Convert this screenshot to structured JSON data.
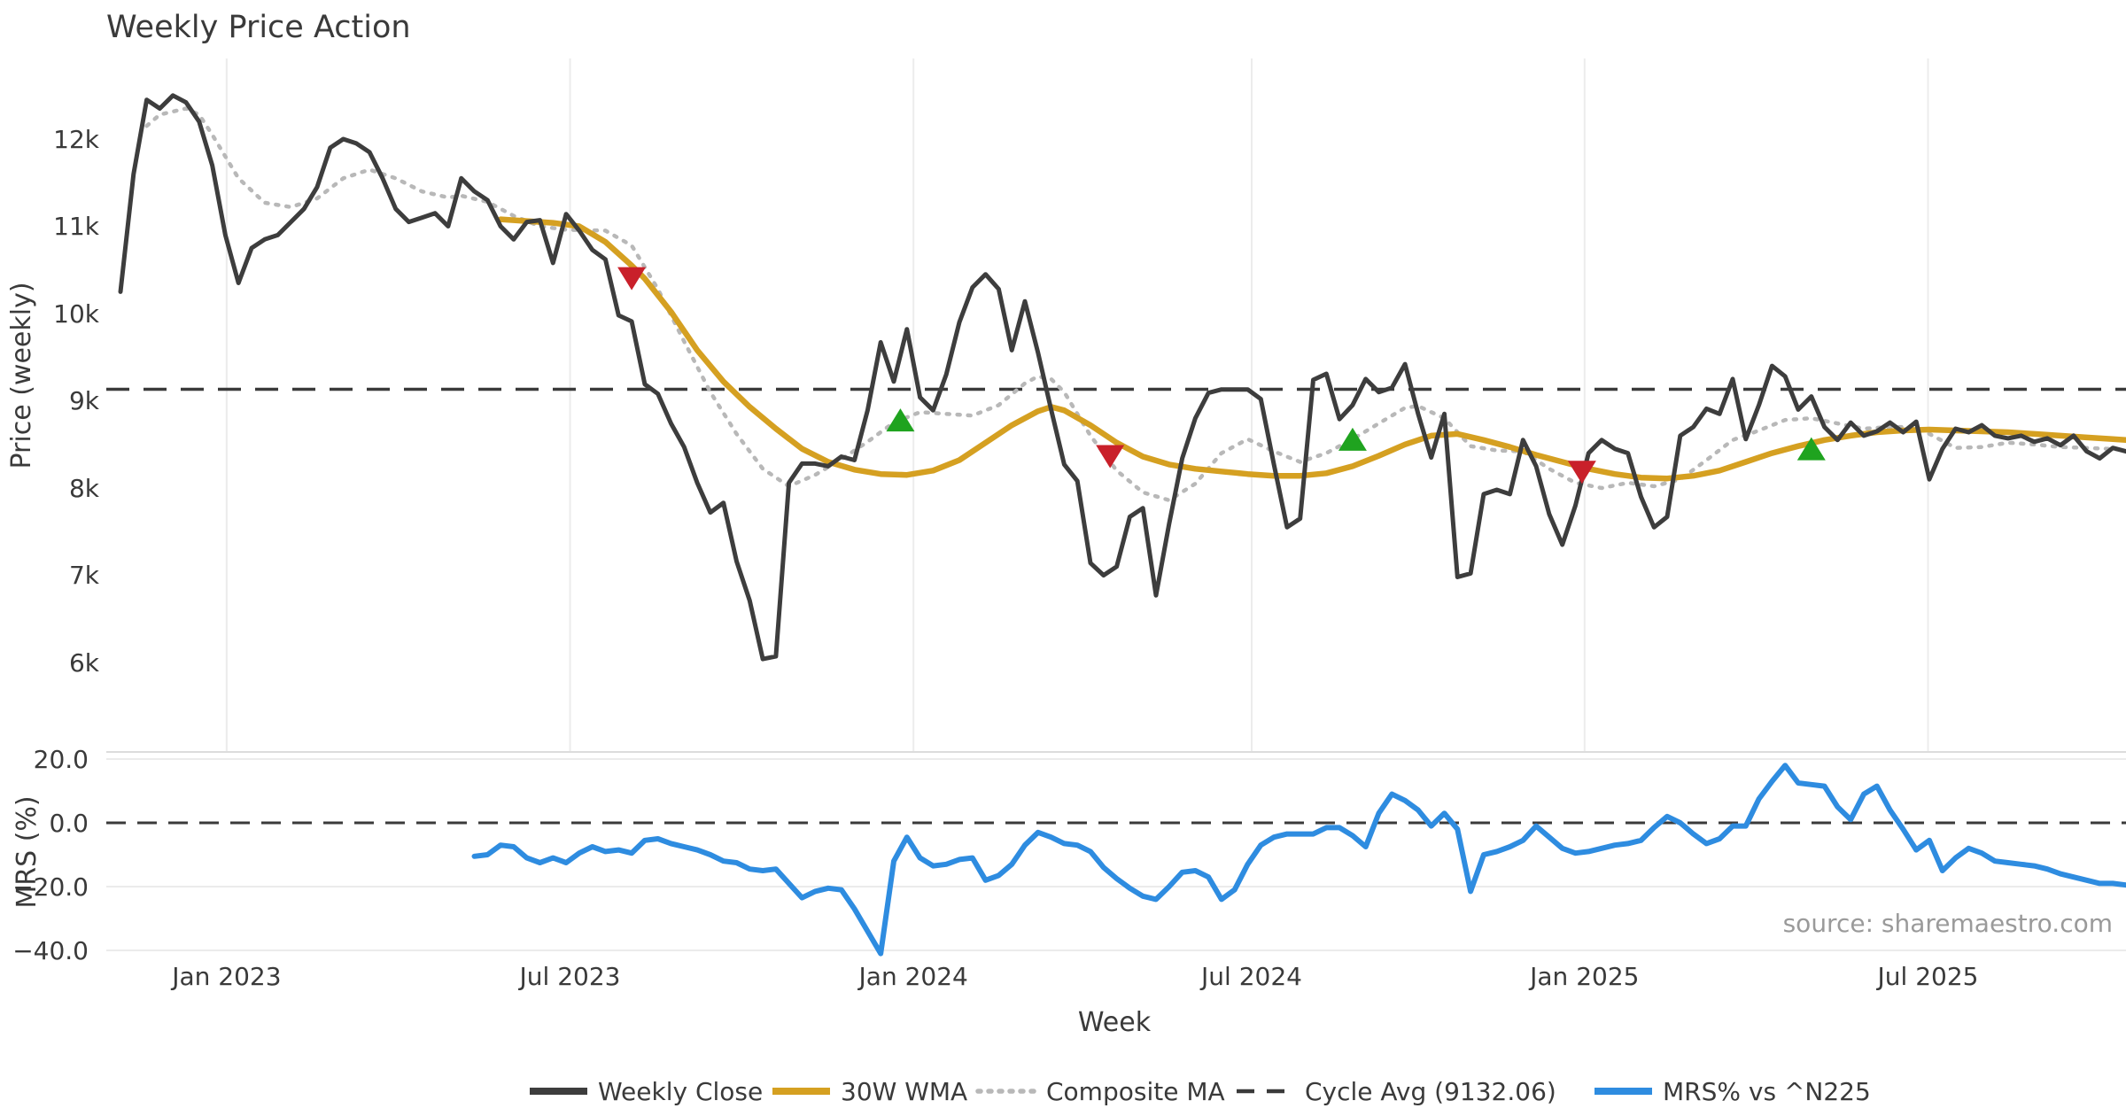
{
  "title": "Weekly Price Action",
  "source_note": "source: sharemaestro.com",
  "colors": {
    "close": "#3d3d3d",
    "wma30": "#d5a021",
    "composite": "#b8b8b8",
    "cycle_dash": "#3a3a3a",
    "mrs": "#2e8ce0",
    "sell": "#c9202a",
    "buy": "#1fa31f",
    "grid": "#ececec",
    "panel_edge": "#dcdcdc",
    "text": "#3a3a3a",
    "source_text": "#9a9a9a"
  },
  "legend": [
    {
      "label": "Weekly Close",
      "style": "solid",
      "color": "#3d3d3d"
    },
    {
      "label": "30W WMA",
      "style": "solid",
      "color": "#d5a021"
    },
    {
      "label": "Composite MA",
      "style": "dotted",
      "color": "#b8b8b8"
    },
    {
      "label": "Cycle Avg (9132.06)",
      "style": "dashed",
      "color": "#3a3a3a"
    },
    {
      "label": "MRS% vs ^N225",
      "style": "solid",
      "color": "#2e8ce0"
    }
  ],
  "chart_data": [
    {
      "type": "line",
      "panel": "price",
      "title": "Weekly Price Action",
      "ylabel": "Price (weekly)",
      "ylim": [
        5000,
        12950
      ],
      "grid": "vertical",
      "cycle_avg": 9132.06,
      "yticks": [
        {
          "v": 12000,
          "label": "12k"
        },
        {
          "v": 11000,
          "label": "11k"
        },
        {
          "v": 10000,
          "label": "10k"
        },
        {
          "v": 9000,
          "label": "9k"
        },
        {
          "v": 8000,
          "label": "8k"
        },
        {
          "v": 7000,
          "label": "7k"
        },
        {
          "v": 6000,
          "label": "6k"
        }
      ],
      "xticks": [
        {
          "week": 8.1,
          "label": "Jan 2023"
        },
        {
          "week": 34.3,
          "label": "Jul 2023"
        },
        {
          "week": 60.5,
          "label": "Jan 2024"
        },
        {
          "week": 86.3,
          "label": "Jul 2024"
        },
        {
          "week": 111.7,
          "label": "Jan 2025"
        },
        {
          "week": 137.9,
          "label": "Jul 2025"
        }
      ],
      "close": {
        "name": "Weekly Close",
        "start_week": 0,
        "values": [
          10250,
          11600,
          12450,
          12350,
          12500,
          12420,
          12200,
          11700,
          10900,
          10350,
          10750,
          10850,
          10900,
          11050,
          11200,
          11450,
          11900,
          12000,
          11950,
          11850,
          11550,
          11200,
          11050,
          11100,
          11150,
          11000,
          11550,
          11400,
          11300,
          11000,
          10850,
          11050,
          11070,
          10580,
          11140,
          10950,
          10730,
          10620,
          9980,
          9910,
          9190,
          9080,
          8740,
          8470,
          8060,
          7720,
          7830,
          7160,
          6710,
          6040,
          6070,
          8060,
          8280,
          8280,
          8250,
          8360,
          8320,
          8890,
          9670,
          9220,
          9820,
          9040,
          8890,
          9300,
          9900,
          10300,
          10450,
          10280,
          9580,
          10140,
          9550,
          8900,
          8270,
          8080,
          7140,
          7000,
          7100,
          7670,
          7770,
          6770,
          7590,
          8340,
          8800,
          9090,
          9130,
          9130,
          9130,
          9020,
          8270,
          7550,
          7650,
          9240,
          9310,
          8790,
          8950,
          9250,
          9100,
          9150,
          9420,
          8850,
          8350,
          8850,
          6980,
          7020,
          7930,
          7980,
          7930,
          8550,
          8250,
          7700,
          7350,
          7800,
          8400,
          8550,
          8450,
          8400,
          7900,
          7550,
          7670,
          8600,
          8700,
          8910,
          8850,
          9250,
          8560,
          8950,
          9400,
          9280,
          8900,
          9050,
          8700,
          8550,
          8750,
          8600,
          8650,
          8750,
          8640,
          8760,
          8100,
          8450,
          8680,
          8640,
          8720,
          8600,
          8570,
          8600,
          8530,
          8570,
          8490,
          8600,
          8420,
          8340,
          8460,
          8420
        ]
      },
      "wma30": {
        "name": "30W WMA",
        "points": [
          [
            29,
            11080
          ],
          [
            31,
            11060
          ],
          [
            33,
            11040
          ],
          [
            35,
            11000
          ],
          [
            37,
            10820
          ],
          [
            39,
            10550
          ],
          [
            40,
            10400
          ],
          [
            42,
            10020
          ],
          [
            44,
            9580
          ],
          [
            46,
            9220
          ],
          [
            48,
            8930
          ],
          [
            50,
            8680
          ],
          [
            52,
            8450
          ],
          [
            54,
            8300
          ],
          [
            56,
            8210
          ],
          [
            58,
            8160
          ],
          [
            60,
            8150
          ],
          [
            62,
            8200
          ],
          [
            64,
            8320
          ],
          [
            66,
            8520
          ],
          [
            68,
            8720
          ],
          [
            70,
            8880
          ],
          [
            71,
            8930
          ],
          [
            72,
            8890
          ],
          [
            74,
            8720
          ],
          [
            76,
            8520
          ],
          [
            78,
            8360
          ],
          [
            80,
            8270
          ],
          [
            82,
            8220
          ],
          [
            84,
            8190
          ],
          [
            86,
            8160
          ],
          [
            88,
            8140
          ],
          [
            90,
            8140
          ],
          [
            92,
            8170
          ],
          [
            94,
            8250
          ],
          [
            96,
            8370
          ],
          [
            98,
            8500
          ],
          [
            100,
            8600
          ],
          [
            102,
            8620
          ],
          [
            104,
            8550
          ],
          [
            106,
            8470
          ],
          [
            108,
            8380
          ],
          [
            110,
            8300
          ],
          [
            112,
            8220
          ],
          [
            114,
            8160
          ],
          [
            116,
            8120
          ],
          [
            118,
            8110
          ],
          [
            120,
            8140
          ],
          [
            122,
            8200
          ],
          [
            124,
            8300
          ],
          [
            126,
            8400
          ],
          [
            128,
            8480
          ],
          [
            130,
            8550
          ],
          [
            132,
            8600
          ],
          [
            134,
            8640
          ],
          [
            136,
            8660
          ],
          [
            138,
            8670
          ],
          [
            140,
            8660
          ],
          [
            142,
            8650
          ],
          [
            144,
            8640
          ],
          [
            146,
            8620
          ],
          [
            148,
            8600
          ],
          [
            150,
            8580
          ],
          [
            152,
            8560
          ],
          [
            153,
            8550
          ]
        ]
      },
      "composite": {
        "name": "Composite MA",
        "points": [
          [
            2,
            12150
          ],
          [
            3,
            12280
          ],
          [
            5,
            12350
          ],
          [
            6,
            12280
          ],
          [
            7,
            12050
          ],
          [
            9,
            11550
          ],
          [
            11,
            11270
          ],
          [
            13,
            11220
          ],
          [
            15,
            11320
          ],
          [
            17,
            11550
          ],
          [
            19,
            11650
          ],
          [
            21,
            11550
          ],
          [
            23,
            11400
          ],
          [
            25,
            11330
          ],
          [
            26,
            11350
          ],
          [
            28,
            11280
          ],
          [
            30,
            11120
          ],
          [
            32,
            11000
          ],
          [
            34,
            10960
          ],
          [
            37,
            10950
          ],
          [
            39,
            10780
          ],
          [
            41,
            10280
          ],
          [
            43,
            9680
          ],
          [
            45,
            9100
          ],
          [
            47,
            8620
          ],
          [
            49,
            8220
          ],
          [
            51,
            8020
          ],
          [
            53,
            8150
          ],
          [
            55,
            8330
          ],
          [
            57,
            8530
          ],
          [
            59,
            8750
          ],
          [
            61,
            8870
          ],
          [
            63,
            8850
          ],
          [
            65,
            8830
          ],
          [
            67,
            8950
          ],
          [
            69,
            9200
          ],
          [
            70,
            9280
          ],
          [
            71,
            9250
          ],
          [
            72,
            9100
          ],
          [
            74,
            8600
          ],
          [
            76,
            8200
          ],
          [
            78,
            7950
          ],
          [
            80,
            7860
          ],
          [
            82,
            8050
          ],
          [
            84,
            8400
          ],
          [
            86,
            8560
          ],
          [
            88,
            8420
          ],
          [
            90,
            8300
          ],
          [
            92,
            8400
          ],
          [
            94,
            8560
          ],
          [
            96,
            8740
          ],
          [
            98,
            8920
          ],
          [
            99,
            8940
          ],
          [
            101,
            8800
          ],
          [
            103,
            8480
          ],
          [
            105,
            8430
          ],
          [
            107,
            8420
          ],
          [
            109,
            8220
          ],
          [
            111,
            8060
          ],
          [
            113,
            8000
          ],
          [
            115,
            8060
          ],
          [
            117,
            8020
          ],
          [
            119,
            8100
          ],
          [
            121,
            8320
          ],
          [
            123,
            8550
          ],
          [
            125,
            8660
          ],
          [
            127,
            8780
          ],
          [
            129,
            8800
          ],
          [
            131,
            8740
          ],
          [
            133,
            8680
          ],
          [
            135,
            8700
          ],
          [
            137,
            8700
          ],
          [
            138,
            8620
          ],
          [
            140,
            8460
          ],
          [
            142,
            8470
          ],
          [
            144,
            8520
          ],
          [
            146,
            8500
          ],
          [
            148,
            8470
          ],
          [
            150,
            8460
          ],
          [
            153,
            8440
          ]
        ]
      },
      "signals": [
        {
          "week": 39,
          "value": 10400,
          "type": "sell"
        },
        {
          "week": 59.5,
          "value": 8780,
          "type": "buy"
        },
        {
          "week": 75.5,
          "value": 8360,
          "type": "sell"
        },
        {
          "week": 94,
          "value": 8560,
          "type": "buy"
        },
        {
          "week": 111.5,
          "value": 8180,
          "type": "sell"
        },
        {
          "week": 129,
          "value": 8450,
          "type": "buy"
        }
      ]
    },
    {
      "type": "line",
      "panel": "mrs",
      "ylabel": "MRS (%)",
      "xlabel": "Week",
      "ylim": [
        -45,
        22
      ],
      "zero_dashed": 0.0,
      "yticks": [
        {
          "v": 20,
          "label": "20.0"
        },
        {
          "v": 0,
          "label": "0.0"
        },
        {
          "v": -20,
          "label": "−20.0"
        },
        {
          "v": -40,
          "label": "−40.0"
        }
      ],
      "mrs": {
        "name": "MRS% vs ^N225",
        "start_week": 27,
        "values": [
          -10.5,
          -10,
          -7,
          -7.5,
          -11,
          -12.5,
          -11,
          -12.5,
          -9.5,
          -7.5,
          -9,
          -8.5,
          -9.5,
          -5.5,
          -5,
          -6.5,
          -7.5,
          -8.5,
          -10,
          -12,
          -12.5,
          -14.5,
          -15,
          -14.5,
          -19,
          -23.5,
          -21.5,
          -20.5,
          -21,
          -27,
          -34,
          -41,
          -12,
          -4.5,
          -11,
          -13.5,
          -13,
          -11.5,
          -11,
          -18,
          -16.5,
          -13,
          -7,
          -3,
          -4.5,
          -6.5,
          -7,
          -9,
          -14,
          -17.5,
          -20.5,
          -23,
          -24,
          -20,
          -15.5,
          -15,
          -17,
          -24,
          -21,
          -13,
          -7,
          -4.5,
          -3.5,
          -3.5,
          -3.5,
          -1.5,
          -1.5,
          -4,
          -7.5,
          3,
          9,
          7,
          4,
          -1,
          3,
          -2,
          -21.5,
          -10,
          -9,
          -7.5,
          -5.5,
          -1,
          -4.5,
          -8,
          -9.5,
          -9,
          -8,
          -7,
          -6.5,
          -5.5,
          -1.5,
          2,
          0,
          -3.5,
          -6.5,
          -5,
          -1,
          -1,
          7.5,
          13,
          18,
          12.5,
          12,
          11.5,
          5,
          1,
          9,
          11.5,
          4,
          -2,
          -8.5,
          -5.5,
          -15,
          -11,
          -8,
          -9.5,
          -12,
          -12.5,
          -13,
          -13.5,
          -14.5,
          -16,
          -17,
          -18,
          -19,
          -19,
          -19.5
        ]
      }
    }
  ]
}
